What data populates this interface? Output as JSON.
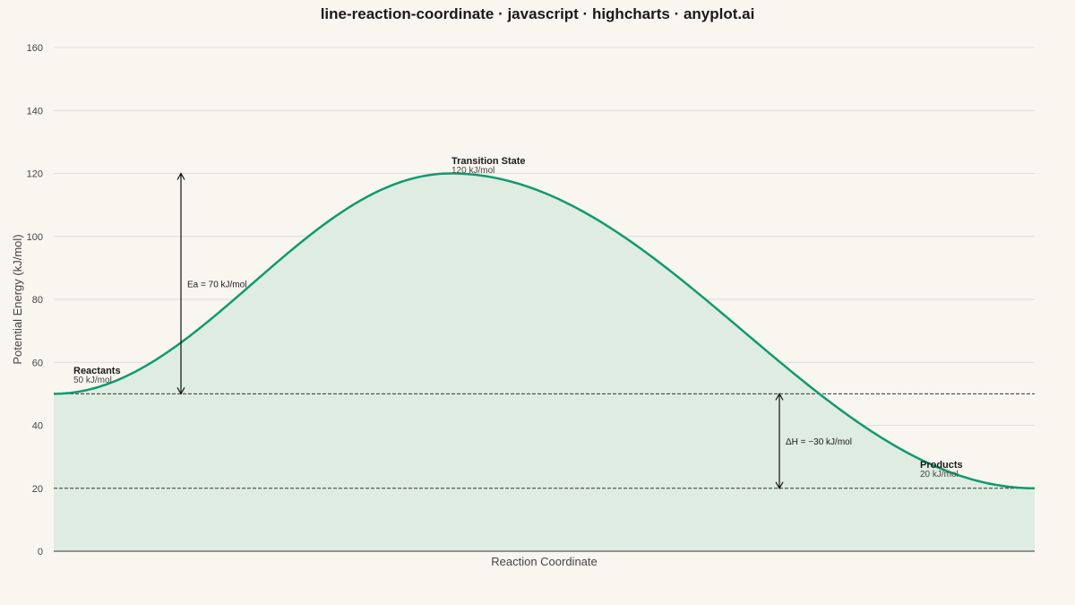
{
  "chart_data": {
    "type": "area",
    "title": "line-reaction-coordinate · javascript · highcharts · anyplot.ai",
    "xlabel": "Reaction Coordinate",
    "ylabel": "Potential Energy (kJ/mol)",
    "ylim": [
      0,
      160
    ],
    "yticks": [
      "0",
      "20",
      "40",
      "60",
      "80",
      "100",
      "120",
      "140",
      "160"
    ],
    "grid": true,
    "colors": {
      "line": "#0f9a6e",
      "fill": "#dfece2",
      "grid": "#dcdcdc",
      "ref": "#333333"
    },
    "curve": {
      "reactant_energy": 50,
      "ts_energy": 120,
      "product_energy": 20,
      "x_range": [
        0,
        1
      ],
      "ts_x": 0.405
    },
    "points": [
      {
        "name": "Reactants",
        "energy_label": "50 kJ/mol"
      },
      {
        "name": "Transition State",
        "energy_label": "120 kJ/mol"
      },
      {
        "name": "Products",
        "energy_label": "20 kJ/mol"
      }
    ],
    "annotations": [
      {
        "text": "Ea = 70 kJ/mol",
        "x": 0.13,
        "from": 50,
        "to": 120
      },
      {
        "text": "ΔH = −30 kJ/mol",
        "x": 0.74,
        "from": 50,
        "to": 20
      }
    ],
    "reference_lines": [
      50,
      20
    ]
  }
}
